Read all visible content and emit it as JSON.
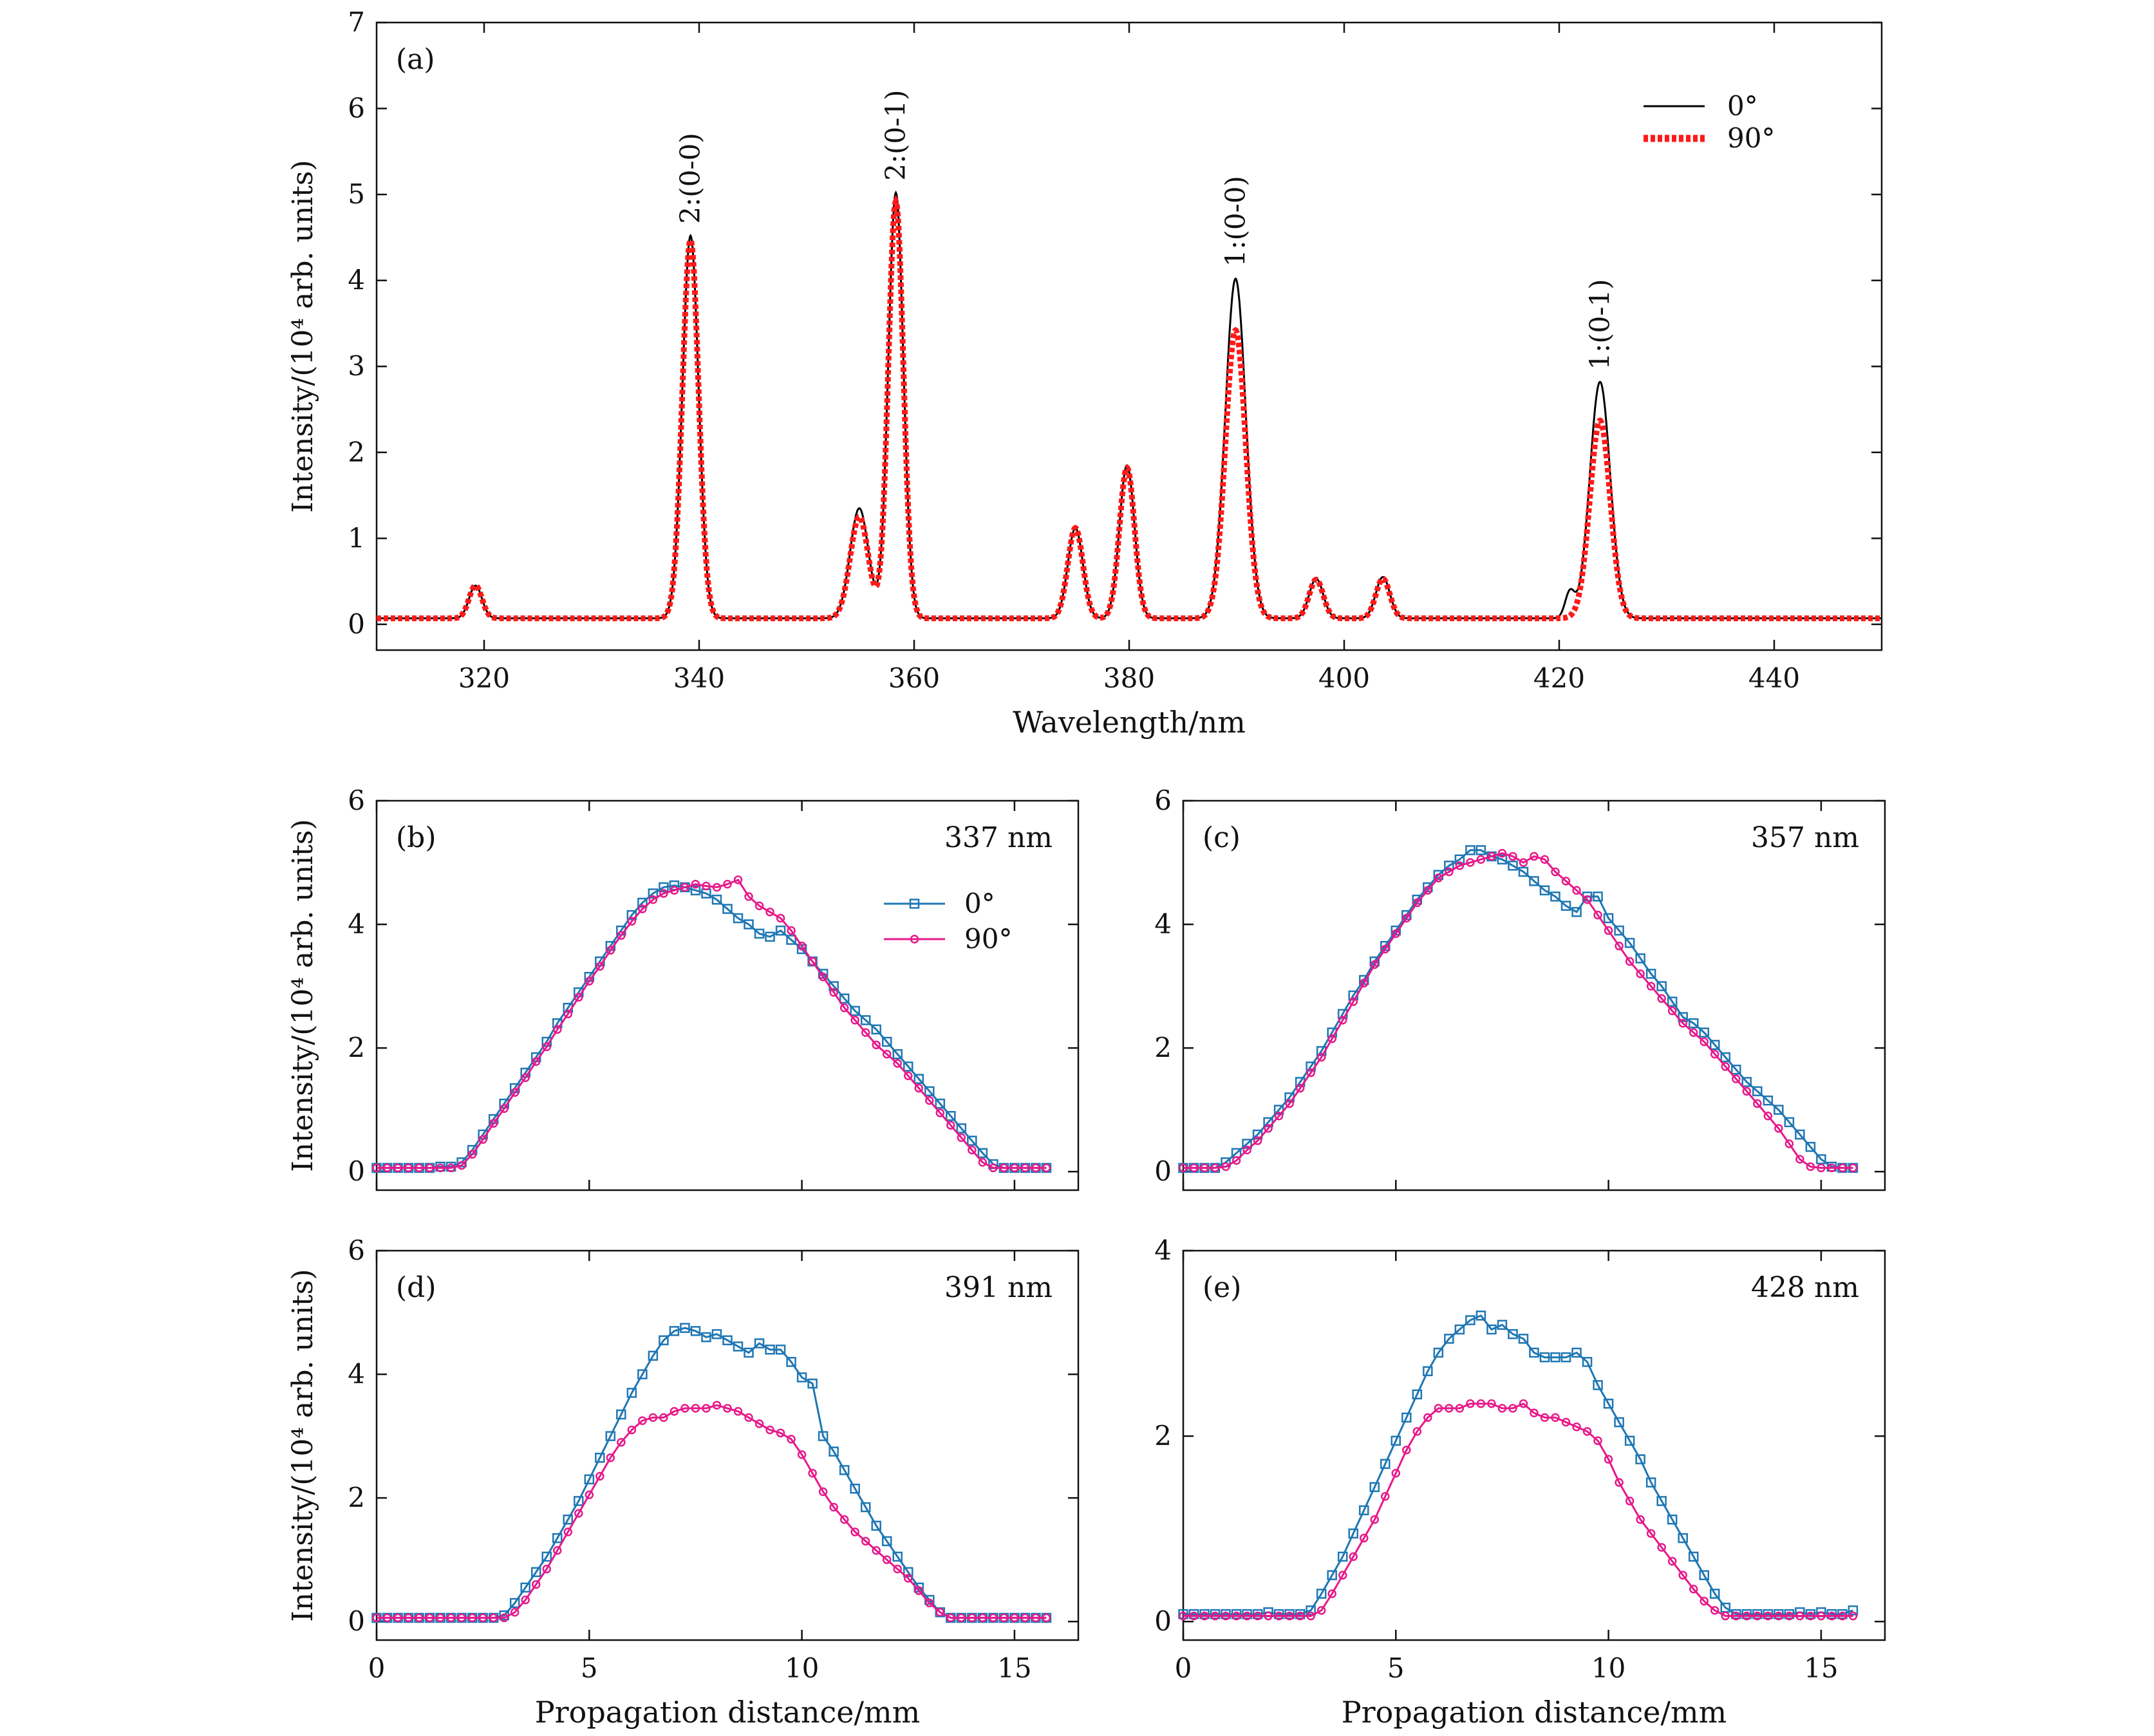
{
  "chart_data": [
    {
      "id": "a",
      "type": "line",
      "panel_label": "(a)",
      "xlabel": "Wavelength/nm",
      "ylabel": "Intensity/(10⁴ arb. units)",
      "xlim": [
        310,
        450
      ],
      "ylim": [
        -0.3,
        7
      ],
      "xticks": [
        320,
        340,
        360,
        380,
        400,
        420,
        440
      ],
      "yticks": [
        0,
        1,
        2,
        3,
        4,
        5,
        6,
        7
      ],
      "legend_position": "top-right",
      "baseline": 0.07,
      "series": [
        {
          "name": "0°",
          "color": "#000000",
          "style": "solid",
          "peaks": [
            [
              319.2,
              0.38,
              0.6
            ],
            [
              339.2,
              4.45,
              0.75
            ],
            [
              354.9,
              1.28,
              0.85
            ],
            [
              358.3,
              4.95,
              0.7
            ],
            [
              375.0,
              1.05,
              0.7
            ],
            [
              379.8,
              1.78,
              0.7
            ],
            [
              389.9,
              3.95,
              0.95
            ],
            [
              397.4,
              0.46,
              0.65
            ],
            [
              403.6,
              0.48,
              0.65
            ],
            [
              423.8,
              2.75,
              0.95
            ],
            [
              421.0,
              0.3,
              0.45
            ]
          ]
        },
        {
          "name": "90°",
          "color": "#ff1a1a",
          "style": "dotted",
          "peaks": [
            [
              319.2,
              0.38,
              0.6
            ],
            [
              339.2,
              4.4,
              0.75
            ],
            [
              354.9,
              1.18,
              0.85
            ],
            [
              358.3,
              4.85,
              0.7
            ],
            [
              375.0,
              1.05,
              0.7
            ],
            [
              379.8,
              1.75,
              0.7
            ],
            [
              389.9,
              3.35,
              0.95
            ],
            [
              397.4,
              0.45,
              0.65
            ],
            [
              403.6,
              0.46,
              0.65
            ],
            [
              423.8,
              2.3,
              0.95
            ]
          ]
        }
      ],
      "annotations": [
        {
          "text": "2:(0-0)",
          "x": 339.2,
          "y": 4.6,
          "color": "#1a1ad6"
        },
        {
          "text": "2:(0-1)",
          "x": 358.3,
          "y": 5.1,
          "color": "#1a1ad6"
        },
        {
          "text": "1:(0-0)",
          "x": 389.9,
          "y": 4.1,
          "color": "#1a1ad6"
        },
        {
          "text": "1:(0-1)",
          "x": 423.8,
          "y": 2.9,
          "color": "#1a1ad6"
        }
      ]
    },
    {
      "id": "b",
      "type": "line",
      "panel_label": "(b)",
      "wavelength_label": "337 nm",
      "ylabel": "Intensity/(10⁴ arb. units)",
      "xlabel": "",
      "xlim": [
        0,
        16.5
      ],
      "ylim": [
        -0.3,
        6
      ],
      "yticks": [
        0,
        2,
        4,
        6
      ],
      "xticks": [
        0,
        5,
        10,
        15
      ],
      "show_xticklabels": false,
      "legend_position": "top-center",
      "x": [
        0.0,
        0.25,
        0.5,
        0.75,
        1.0,
        1.25,
        1.5,
        1.75,
        2.0,
        2.25,
        2.5,
        2.75,
        3.0,
        3.25,
        3.5,
        3.75,
        4.0,
        4.25,
        4.5,
        4.75,
        5.0,
        5.25,
        5.5,
        5.75,
        6.0,
        6.25,
        6.5,
        6.75,
        7.0,
        7.25,
        7.5,
        7.75,
        8.0,
        8.25,
        8.5,
        8.75,
        9.0,
        9.25,
        9.5,
        9.75,
        10.0,
        10.25,
        10.5,
        10.75,
        11.0,
        11.25,
        11.5,
        11.75,
        12.0,
        12.25,
        12.5,
        12.75,
        13.0,
        13.25,
        13.5,
        13.75,
        14.0,
        14.25,
        14.5,
        14.75,
        15.0,
        15.25,
        15.5,
        15.75
      ],
      "series": [
        {
          "name": "0°",
          "color": "#1f77b4",
          "marker": "square",
          "values": [
            0.06,
            0.06,
            0.06,
            0.06,
            0.06,
            0.06,
            0.08,
            0.08,
            0.15,
            0.35,
            0.6,
            0.85,
            1.1,
            1.35,
            1.6,
            1.85,
            2.1,
            2.4,
            2.65,
            2.9,
            3.15,
            3.4,
            3.65,
            3.9,
            4.15,
            4.35,
            4.5,
            4.6,
            4.63,
            4.6,
            4.55,
            4.5,
            4.4,
            4.25,
            4.1,
            4.0,
            3.85,
            3.8,
            3.9,
            3.75,
            3.6,
            3.4,
            3.2,
            3.0,
            2.8,
            2.6,
            2.45,
            2.3,
            2.1,
            1.9,
            1.7,
            1.5,
            1.3,
            1.1,
            0.9,
            0.7,
            0.5,
            0.3,
            0.12,
            0.06,
            0.06,
            0.06,
            0.06,
            0.06
          ]
        },
        {
          "name": "90°",
          "color": "#e6198a",
          "marker": "circle",
          "values": [
            0.06,
            0.06,
            0.06,
            0.06,
            0.06,
            0.06,
            0.06,
            0.06,
            0.1,
            0.28,
            0.52,
            0.78,
            1.02,
            1.28,
            1.52,
            1.78,
            2.02,
            2.3,
            2.55,
            2.82,
            3.08,
            3.32,
            3.58,
            3.82,
            4.05,
            4.25,
            4.4,
            4.5,
            4.55,
            4.6,
            4.65,
            4.62,
            4.6,
            4.65,
            4.72,
            4.45,
            4.3,
            4.2,
            4.1,
            3.9,
            3.65,
            3.4,
            3.15,
            2.9,
            2.65,
            2.45,
            2.25,
            2.05,
            1.9,
            1.75,
            1.55,
            1.35,
            1.15,
            0.95,
            0.75,
            0.55,
            0.35,
            0.15,
            0.06,
            0.06,
            0.06,
            0.06,
            0.06,
            0.06
          ]
        }
      ]
    },
    {
      "id": "c",
      "type": "line",
      "panel_label": "(c)",
      "wavelength_label": "357 nm",
      "ylabel": "",
      "xlabel": "",
      "xlim": [
        0,
        16.5
      ],
      "ylim": [
        -0.3,
        6
      ],
      "yticks": [
        0,
        2,
        4,
        6
      ],
      "xticks": [
        0,
        5,
        10,
        15
      ],
      "show_xticklabels": false,
      "x": [
        0.0,
        0.25,
        0.5,
        0.75,
        1.0,
        1.25,
        1.5,
        1.75,
        2.0,
        2.25,
        2.5,
        2.75,
        3.0,
        3.25,
        3.5,
        3.75,
        4.0,
        4.25,
        4.5,
        4.75,
        5.0,
        5.25,
        5.5,
        5.75,
        6.0,
        6.25,
        6.5,
        6.75,
        7.0,
        7.25,
        7.5,
        7.75,
        8.0,
        8.25,
        8.5,
        8.75,
        9.0,
        9.25,
        9.5,
        9.75,
        10.0,
        10.25,
        10.5,
        10.75,
        11.0,
        11.25,
        11.5,
        11.75,
        12.0,
        12.25,
        12.5,
        12.75,
        13.0,
        13.25,
        13.5,
        13.75,
        14.0,
        14.25,
        14.5,
        14.75,
        15.0,
        15.25,
        15.5,
        15.75
      ],
      "series": [
        {
          "name": "0°",
          "color": "#1f77b4",
          "marker": "square",
          "values": [
            0.06,
            0.06,
            0.06,
            0.06,
            0.15,
            0.3,
            0.45,
            0.6,
            0.8,
            1.0,
            1.2,
            1.45,
            1.7,
            1.95,
            2.25,
            2.55,
            2.85,
            3.1,
            3.4,
            3.65,
            3.9,
            4.15,
            4.4,
            4.6,
            4.8,
            4.95,
            5.05,
            5.2,
            5.2,
            5.1,
            5.05,
            4.95,
            4.85,
            4.7,
            4.55,
            4.45,
            4.3,
            4.2,
            4.45,
            4.45,
            4.1,
            3.9,
            3.7,
            3.45,
            3.2,
            3.0,
            2.75,
            2.5,
            2.4,
            2.25,
            2.05,
            1.85,
            1.65,
            1.45,
            1.3,
            1.15,
            1.0,
            0.8,
            0.6,
            0.4,
            0.2,
            0.08,
            0.06,
            0.06
          ]
        },
        {
          "name": "90°",
          "color": "#e6198a",
          "marker": "circle",
          "values": [
            0.06,
            0.06,
            0.06,
            0.06,
            0.08,
            0.18,
            0.35,
            0.5,
            0.7,
            0.9,
            1.1,
            1.35,
            1.6,
            1.85,
            2.15,
            2.45,
            2.75,
            3.05,
            3.35,
            3.6,
            3.85,
            4.1,
            4.35,
            4.55,
            4.75,
            4.85,
            4.95,
            5.0,
            5.05,
            5.1,
            5.15,
            5.1,
            5.0,
            5.1,
            5.05,
            4.85,
            4.7,
            4.55,
            4.4,
            4.15,
            3.9,
            3.65,
            3.4,
            3.2,
            3.0,
            2.8,
            2.6,
            2.4,
            2.25,
            2.1,
            1.9,
            1.7,
            1.5,
            1.3,
            1.1,
            0.9,
            0.7,
            0.45,
            0.2,
            0.08,
            0.06,
            0.06,
            0.06,
            0.06
          ]
        }
      ]
    },
    {
      "id": "d",
      "type": "line",
      "panel_label": "(d)",
      "wavelength_label": "391 nm",
      "ylabel": "Intensity/(10⁴ arb. units)",
      "xlabel": "Propagation distance/mm",
      "xlim": [
        0,
        16.5
      ],
      "ylim": [
        -0.3,
        6
      ],
      "yticks": [
        0,
        2,
        4,
        6
      ],
      "xticks": [
        0,
        5,
        10,
        15
      ],
      "show_xticklabels": true,
      "x": [
        0.0,
        0.25,
        0.5,
        0.75,
        1.0,
        1.25,
        1.5,
        1.75,
        2.0,
        2.25,
        2.5,
        2.75,
        3.0,
        3.25,
        3.5,
        3.75,
        4.0,
        4.25,
        4.5,
        4.75,
        5.0,
        5.25,
        5.5,
        5.75,
        6.0,
        6.25,
        6.5,
        6.75,
        7.0,
        7.25,
        7.5,
        7.75,
        8.0,
        8.25,
        8.5,
        8.75,
        9.0,
        9.25,
        9.5,
        9.75,
        10.0,
        10.25,
        10.5,
        10.75,
        11.0,
        11.25,
        11.5,
        11.75,
        12.0,
        12.25,
        12.5,
        12.75,
        13.0,
        13.25,
        13.5,
        13.75,
        14.0,
        14.25,
        14.5,
        14.75,
        15.0,
        15.25,
        15.5,
        15.75
      ],
      "series": [
        {
          "name": "0°",
          "color": "#1f77b4",
          "marker": "square",
          "values": [
            0.06,
            0.06,
            0.06,
            0.06,
            0.06,
            0.06,
            0.06,
            0.06,
            0.06,
            0.06,
            0.06,
            0.06,
            0.1,
            0.3,
            0.55,
            0.8,
            1.05,
            1.35,
            1.65,
            1.95,
            2.3,
            2.65,
            3.0,
            3.35,
            3.7,
            4.0,
            4.3,
            4.55,
            4.7,
            4.75,
            4.7,
            4.6,
            4.65,
            4.55,
            4.45,
            4.35,
            4.5,
            4.4,
            4.4,
            4.2,
            3.95,
            3.85,
            3.0,
            2.75,
            2.45,
            2.15,
            1.85,
            1.55,
            1.3,
            1.05,
            0.8,
            0.55,
            0.35,
            0.15,
            0.06,
            0.06,
            0.06,
            0.06,
            0.06,
            0.06,
            0.06,
            0.06,
            0.06,
            0.06
          ]
        },
        {
          "name": "90°",
          "color": "#e6198a",
          "marker": "circle",
          "values": [
            0.06,
            0.06,
            0.06,
            0.06,
            0.06,
            0.06,
            0.06,
            0.06,
            0.06,
            0.06,
            0.06,
            0.06,
            0.06,
            0.15,
            0.35,
            0.6,
            0.85,
            1.15,
            1.45,
            1.75,
            2.05,
            2.35,
            2.65,
            2.9,
            3.1,
            3.25,
            3.3,
            3.3,
            3.4,
            3.45,
            3.45,
            3.45,
            3.5,
            3.45,
            3.4,
            3.3,
            3.2,
            3.1,
            3.05,
            2.95,
            2.7,
            2.4,
            2.1,
            1.85,
            1.65,
            1.45,
            1.3,
            1.15,
            1.0,
            0.85,
            0.7,
            0.5,
            0.3,
            0.15,
            0.06,
            0.06,
            0.06,
            0.06,
            0.06,
            0.06,
            0.06,
            0.06,
            0.06,
            0.06
          ]
        }
      ]
    },
    {
      "id": "e",
      "type": "line",
      "panel_label": "(e)",
      "wavelength_label": "428 nm",
      "ylabel": "",
      "xlabel": "Propagation distance/mm",
      "xlim": [
        0,
        16.5
      ],
      "ylim": [
        -0.2,
        4
      ],
      "yticks": [
        0,
        2,
        4
      ],
      "xticks": [
        0,
        5,
        10,
        15
      ],
      "show_xticklabels": true,
      "x": [
        0.0,
        0.25,
        0.5,
        0.75,
        1.0,
        1.25,
        1.5,
        1.75,
        2.0,
        2.25,
        2.5,
        2.75,
        3.0,
        3.25,
        3.5,
        3.75,
        4.0,
        4.25,
        4.5,
        4.75,
        5.0,
        5.25,
        5.5,
        5.75,
        6.0,
        6.25,
        6.5,
        6.75,
        7.0,
        7.25,
        7.5,
        7.75,
        8.0,
        8.25,
        8.5,
        8.75,
        9.0,
        9.25,
        9.5,
        9.75,
        10.0,
        10.25,
        10.5,
        10.75,
        11.0,
        11.25,
        11.5,
        11.75,
        12.0,
        12.25,
        12.5,
        12.75,
        13.0,
        13.25,
        13.5,
        13.75,
        14.0,
        14.25,
        14.5,
        14.75,
        15.0,
        15.25,
        15.5,
        15.75
      ],
      "series": [
        {
          "name": "0°",
          "color": "#1f77b4",
          "marker": "square",
          "values": [
            0.08,
            0.08,
            0.08,
            0.08,
            0.08,
            0.08,
            0.08,
            0.08,
            0.1,
            0.08,
            0.08,
            0.08,
            0.12,
            0.3,
            0.5,
            0.7,
            0.95,
            1.2,
            1.45,
            1.7,
            1.95,
            2.2,
            2.45,
            2.7,
            2.9,
            3.05,
            3.15,
            3.25,
            3.3,
            3.15,
            3.2,
            3.1,
            3.05,
            2.9,
            2.85,
            2.85,
            2.85,
            2.9,
            2.8,
            2.55,
            2.35,
            2.15,
            1.95,
            1.75,
            1.5,
            1.3,
            1.1,
            0.9,
            0.7,
            0.5,
            0.3,
            0.15,
            0.08,
            0.08,
            0.08,
            0.08,
            0.08,
            0.08,
            0.1,
            0.08,
            0.1,
            0.08,
            0.08,
            0.12
          ]
        },
        {
          "name": "90°",
          "color": "#e6198a",
          "marker": "circle",
          "values": [
            0.06,
            0.06,
            0.06,
            0.06,
            0.06,
            0.06,
            0.06,
            0.06,
            0.06,
            0.06,
            0.06,
            0.06,
            0.06,
            0.12,
            0.3,
            0.5,
            0.7,
            0.9,
            1.1,
            1.35,
            1.6,
            1.85,
            2.05,
            2.2,
            2.3,
            2.3,
            2.3,
            2.35,
            2.35,
            2.35,
            2.3,
            2.3,
            2.35,
            2.25,
            2.2,
            2.2,
            2.15,
            2.1,
            2.05,
            1.95,
            1.75,
            1.5,
            1.3,
            1.1,
            0.95,
            0.8,
            0.65,
            0.5,
            0.35,
            0.22,
            0.12,
            0.06,
            0.06,
            0.06,
            0.06,
            0.06,
            0.06,
            0.06,
            0.06,
            0.06,
            0.06,
            0.06,
            0.06,
            0.06
          ]
        }
      ]
    }
  ]
}
